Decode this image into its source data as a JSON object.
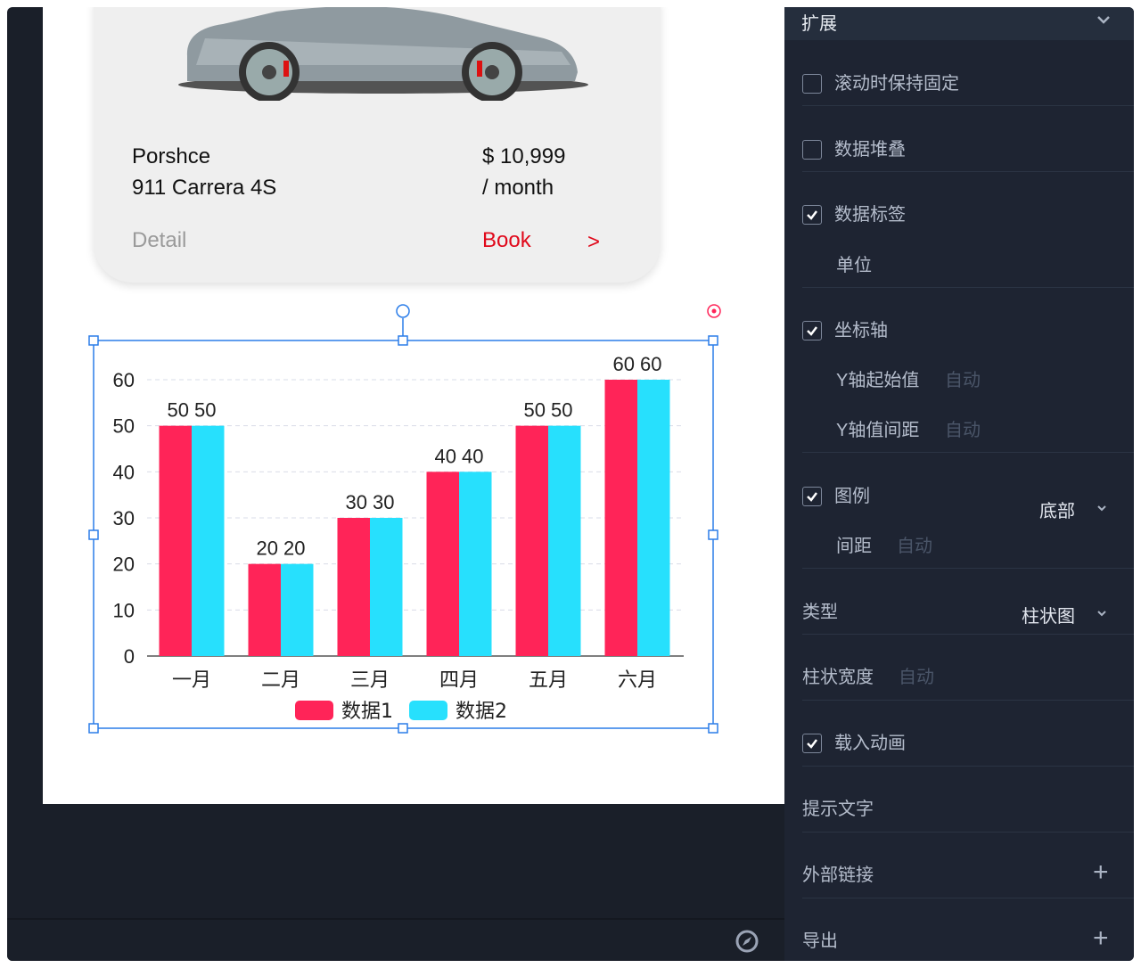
{
  "card": {
    "brand": "Porshce",
    "model": "911 Carrera 4S",
    "price": "$ 10,999",
    "period": "/ month",
    "detail": "Detail",
    "book": "Book",
    "arrow": ">"
  },
  "chart_data": {
    "type": "bar",
    "categories": [
      "一月",
      "二月",
      "三月",
      "四月",
      "五月",
      "六月"
    ],
    "series": [
      {
        "name": "数据1",
        "values": [
          50,
          20,
          30,
          40,
          50,
          60
        ],
        "color": "#ff2458"
      },
      {
        "name": "数据2",
        "values": [
          50,
          20,
          30,
          40,
          50,
          60
        ],
        "color": "#27e0fd"
      }
    ],
    "ylim": [
      0,
      60
    ],
    "yticks": [
      0,
      10,
      20,
      30,
      40,
      50,
      60
    ],
    "grid": true,
    "data_labels": true,
    "legend": "bottom"
  },
  "panel": {
    "title": "扩展",
    "rows": [
      {
        "label": "滚动时保持固定",
        "checked": false
      },
      {
        "label": "数据堆叠",
        "checked": false
      },
      {
        "label": "数据标签",
        "checked": true
      },
      {
        "label": "单位"
      },
      {
        "label": "坐标轴",
        "checked": true
      },
      {
        "label": "Y轴起始值",
        "value": "自动"
      },
      {
        "label": "Y轴值间距",
        "value": "自动"
      },
      {
        "label": "图例",
        "checked": true,
        "value": "底部"
      },
      {
        "label": "间距",
        "value": "自动"
      },
      {
        "label": "类型",
        "value": "柱状图"
      },
      {
        "label": "柱状宽度",
        "value": "自动"
      },
      {
        "label": "载入动画",
        "checked": true
      },
      {
        "label": "提示文字"
      },
      {
        "label": "外部链接"
      },
      {
        "label": "导出"
      }
    ]
  }
}
